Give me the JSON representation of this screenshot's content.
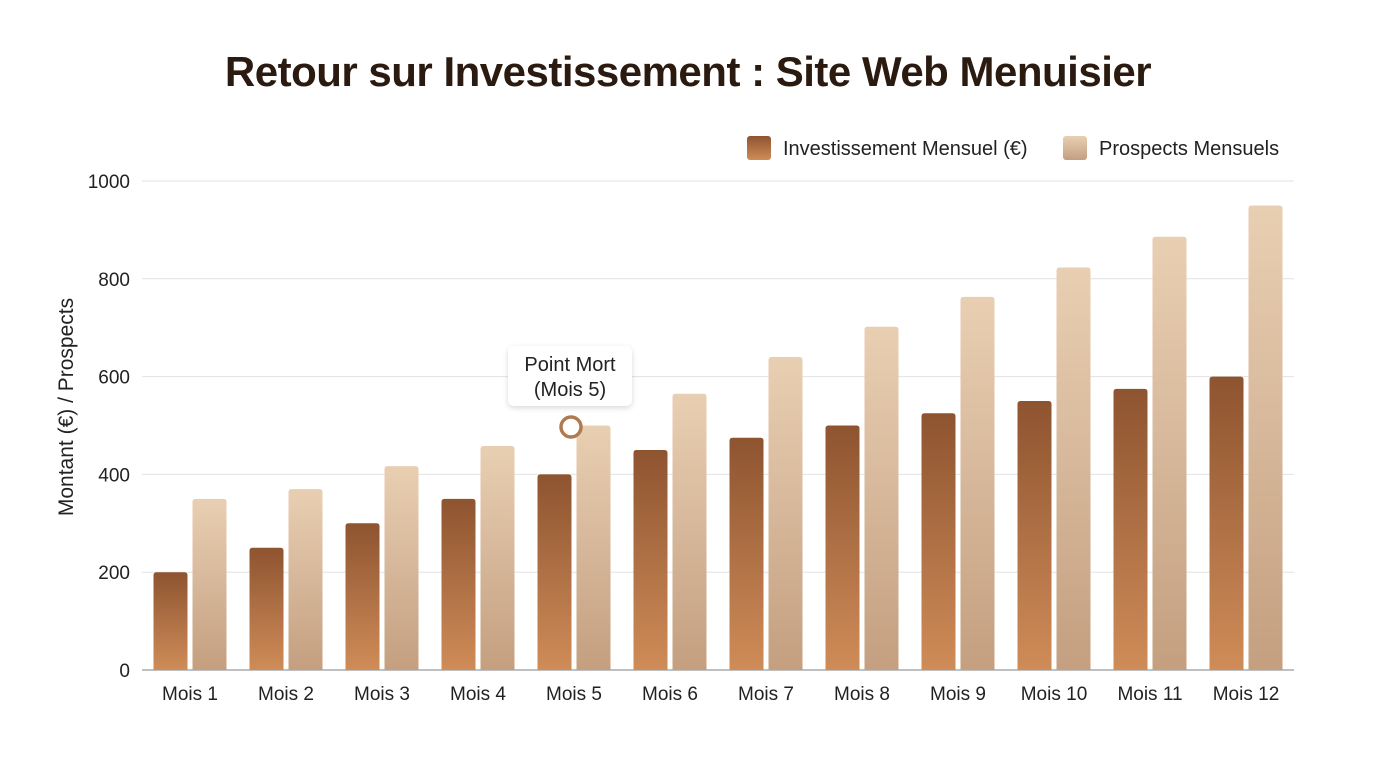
{
  "chart_data": {
    "type": "bar",
    "title": "Retour sur Investissement : Site Web Menuisier",
    "xlabel": "",
    "ylabel": "Montant (€) / Prospects",
    "ylim": [
      0,
      1000
    ],
    "yticks": [
      0,
      200,
      400,
      600,
      800,
      1000
    ],
    "grid": true,
    "legend_position": "top-right",
    "categories": [
      "Mois 1",
      "Mois 2",
      "Mois 3",
      "Mois 4",
      "Mois 5",
      "Mois 6",
      "Mois 7",
      "Mois 8",
      "Mois 9",
      "Mois 10",
      "Mois 11",
      "Mois 12"
    ],
    "series": [
      {
        "name": "Investissement Mensuel (€)",
        "color": "#a0643a",
        "values": [
          200,
          250,
          300,
          350,
          400,
          450,
          475,
          500,
          525,
          550,
          575,
          600
        ]
      },
      {
        "name": "Prospects Mensuels",
        "color": "#dfc0a0",
        "values": [
          350,
          370,
          417,
          458,
          500,
          565,
          640,
          702,
          763,
          823,
          886,
          950
        ]
      }
    ],
    "annotation": {
      "line1": "Point Mort",
      "line2": "(Mois 5)",
      "category": "Mois 5",
      "value": 500
    }
  }
}
